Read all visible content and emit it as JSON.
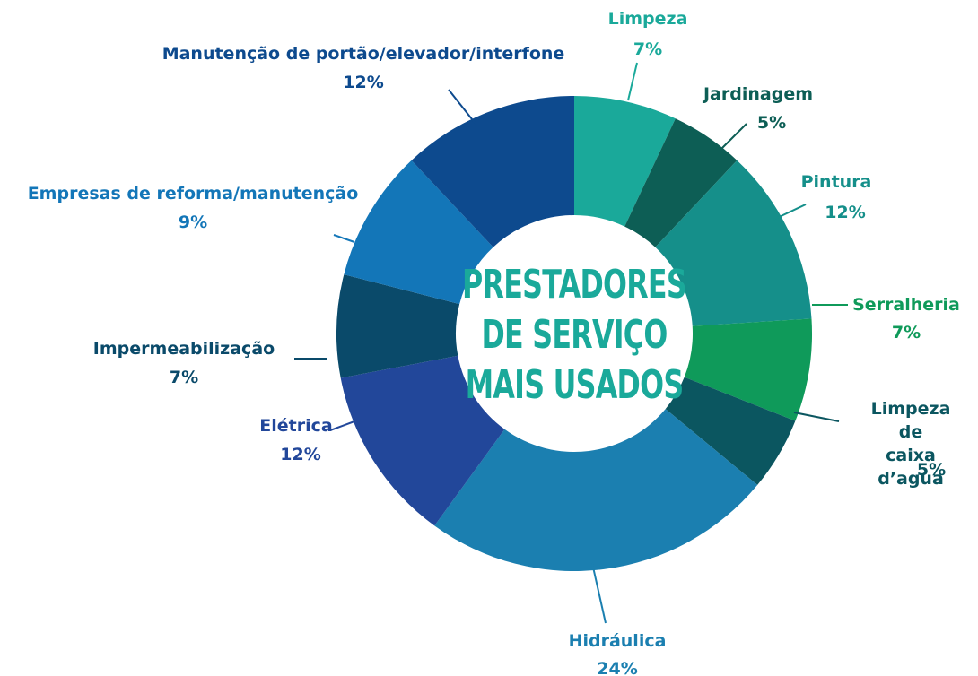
{
  "chart_data": {
    "type": "donut",
    "title": "PRESTADORES\nDE SERVIÇO\nMAIS USADOS",
    "categories": [
      "Limpeza",
      "Jardinagem",
      "Pintura",
      "Serralheria",
      "Limpeza de\ncaixa d’agua",
      "Hidráulica",
      "Elétrica",
      "Impermeabilização",
      "Empresas de reforma/manutenção",
      "Manutenção de portão/elevador/interfone"
    ],
    "values": [
      7,
      5,
      12,
      7,
      5,
      24,
      12,
      7,
      9,
      12
    ],
    "value_labels": [
      "7%",
      "5%",
      "12%",
      "7%",
      "5%",
      "24%",
      "12%",
      "7%",
      "9%",
      "12%"
    ],
    "colors": [
      "#1aa99a",
      "#0d5e55",
      "#158f8a",
      "#0f9a5a",
      "#0b5660",
      "#1b7fb0",
      "#22479a",
      "#0a4a6a",
      "#1376b8",
      "#0d4a8e"
    ]
  }
}
